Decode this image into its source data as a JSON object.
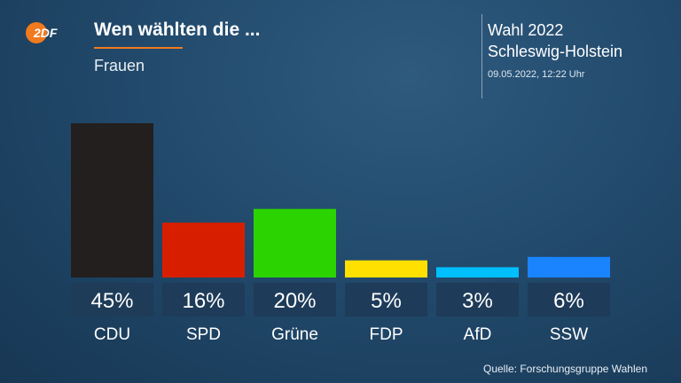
{
  "brand": {
    "logo_text": "2DF",
    "logo_color": "#f07a1e"
  },
  "header": {
    "title": "Wen wählten die ...",
    "subtitle": "Frauen",
    "election_line1": "Wahl 2022",
    "election_line2": "Schleswig-Holstein",
    "timestamp": "09.05.2022, 12:22 Uhr"
  },
  "footer": {
    "source": "Quelle: Forschungsgruppe Wahlen"
  },
  "chart_data": {
    "type": "bar",
    "title": "",
    "categories": [
      "CDU",
      "SPD",
      "Grüne",
      "FDP",
      "AfD",
      "SSW"
    ],
    "values": [
      45,
      16,
      20,
      5,
      3,
      6
    ],
    "value_labels": [
      "45%",
      "16%",
      "20%",
      "5%",
      "3%",
      "6%"
    ],
    "unit": "%",
    "colors": [
      "#231f1e",
      "#d71f00",
      "#2bd400",
      "#ffe000",
      "#00bfff",
      "#1a84ff"
    ],
    "ylim": [
      0,
      45
    ],
    "grid": false,
    "legend": "none"
  }
}
